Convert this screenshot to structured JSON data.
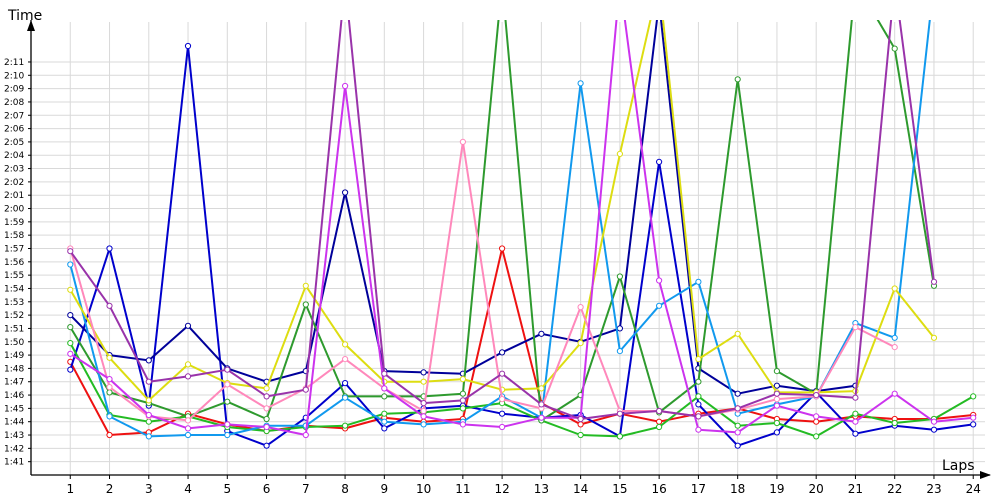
{
  "chart_data": {
    "type": "line",
    "ylabel": "Time",
    "xlabel": "Laps",
    "x": [
      1,
      2,
      3,
      4,
      5,
      6,
      7,
      8,
      9,
      10,
      11,
      12,
      13,
      14,
      15,
      16,
      17,
      18,
      19,
      20,
      21,
      22,
      23,
      24
    ],
    "xlim": [
      0,
      24.3
    ],
    "ylim_seconds": [
      99,
      133
    ],
    "y_ticks": [
      "1:41",
      "1:42",
      "1:43",
      "1:44",
      "1:45",
      "1:46",
      "1:47",
      "1:48",
      "1:49",
      "1:50",
      "1:51",
      "1:52",
      "1:53",
      "1:54",
      "1:55",
      "1:56",
      "1:57",
      "1:58",
      "1:59",
      "2:00",
      "2:01",
      "2:02",
      "2:03",
      "2:04",
      "2:05",
      "2:06",
      "2:07",
      "2:08",
      "2:09",
      "2:10",
      "2:11"
    ],
    "grid": true,
    "legend": "none",
    "series": [
      {
        "color": "#ee1111",
        "values_seconds": [
          107.5,
          102.0,
          102.2,
          103.6,
          102.8,
          102.3,
          102.7,
          102.5,
          103.3,
          103.0,
          103.2,
          116.0,
          104.4,
          102.8,
          103.6,
          103.0,
          103.6,
          104.0,
          103.2,
          103.0,
          103.4,
          103.2,
          103.2,
          103.5
        ]
      },
      {
        "color": "#0000cc",
        "values_seconds": [
          106.9,
          116.0,
          104.2,
          131.2,
          102.3,
          101.2,
          103.3,
          105.9,
          102.5,
          104.0,
          104.2,
          103.6,
          103.3,
          103.5,
          101.9,
          122.5,
          104.3,
          101.2,
          102.2,
          105.2,
          102.1,
          102.7,
          102.4,
          102.8
        ]
      },
      {
        "color": "#00009a",
        "values_seconds": [
          111.0,
          108.0,
          107.6,
          110.2,
          107.0,
          106.0,
          106.8,
          120.2,
          106.8,
          106.7,
          106.6,
          108.2,
          109.6,
          109.0,
          110.0,
          134.5,
          107.0,
          105.1,
          105.7,
          105.3,
          105.7
        ]
      },
      {
        "color": "#23bb23",
        "values_seconds": [
          108.9,
          103.5,
          103.0,
          103.4,
          102.6,
          102.3,
          102.6,
          102.7,
          103.6,
          103.7,
          104.0,
          104.4,
          103.1,
          102.0,
          101.9,
          102.6,
          104.9,
          102.7,
          102.9,
          101.9,
          103.6,
          102.9,
          103.2,
          104.9
        ]
      },
      {
        "color": "#2e9a2e",
        "values_seconds": [
          110.1,
          105.2,
          104.4,
          103.4,
          104.5,
          103.2,
          111.8,
          104.9,
          104.9,
          104.9,
          105.1,
          136,
          103.1,
          105.0,
          113.9,
          103.7,
          106.0,
          128.7,
          106.8,
          105.1,
          136,
          131.0,
          113.2
        ]
      },
      {
        "color": "#1199ee",
        "values_seconds": [
          114.8,
          103.4,
          101.9,
          102.0,
          102.0,
          102.7,
          102.7,
          104.8,
          103.0,
          102.8,
          103.0,
          104.9,
          103.3,
          128.4,
          108.3,
          111.7,
          113.5,
          103.6,
          104.3,
          104.9,
          110.4,
          109.3,
          136
        ]
      },
      {
        "color": "#dddd11",
        "values_seconds": [
          112.9,
          107.8,
          104.6,
          107.3,
          105.9,
          105.5,
          113.2,
          108.8,
          106.0,
          106.0,
          106.2,
          105.4,
          105.5,
          108.9,
          123.1,
          136,
          107.7,
          109.6,
          105.2,
          105.2,
          105.3,
          113.0,
          109.3
        ]
      },
      {
        "color": "#ff88bb",
        "values_seconds": [
          116.0,
          105.6,
          103.4,
          103.1,
          105.8,
          104.0,
          105.5,
          107.7,
          105.5,
          103.8,
          124.0,
          104.7,
          104.0,
          111.6,
          103.8,
          103.8,
          103.4,
          103.9,
          104.7,
          104.9,
          110.1,
          108.6
        ]
      },
      {
        "color": "#cc33ee",
        "values_seconds": [
          108.1,
          106.2,
          103.5,
          102.5,
          102.8,
          102.6,
          102.0,
          128.2,
          105.5,
          103.4,
          102.8,
          102.6,
          103.3,
          103.3,
          136,
          113.6,
          102.4,
          102.2,
          104.2,
          103.4,
          103.0,
          105.1,
          103.0,
          103.3
        ]
      },
      {
        "color": "#9933aa",
        "values_seconds": [
          115.8,
          111.7,
          106.0,
          106.4,
          106.9,
          104.9,
          105.4,
          136,
          106.6,
          104.4,
          104.6,
          106.6,
          104.3,
          103.2,
          103.6,
          103.8,
          103.4,
          104.0,
          105.1,
          105.0,
          104.8,
          136,
          113.5
        ]
      }
    ]
  }
}
